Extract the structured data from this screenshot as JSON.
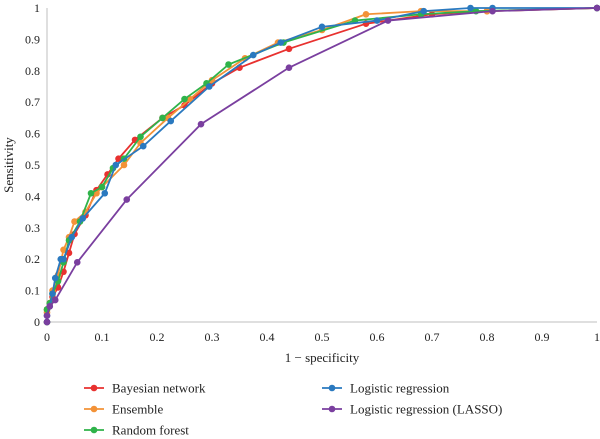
{
  "chart_data": {
    "type": "line",
    "xlabel": "1 − specificity",
    "ylabel": "Sensitivity",
    "xlim": [
      0,
      1
    ],
    "ylim": [
      0,
      1
    ],
    "x_ticks": [
      "0",
      "0.1",
      "0.2",
      "0.3",
      "0.4",
      "0.5",
      "0.6",
      "0.7",
      "0.8",
      "0.9",
      "1"
    ],
    "y_ticks": [
      "0",
      "0.1",
      "0.2",
      "0.3",
      "0.4",
      "0.5",
      "0.6",
      "0.7",
      "0.8",
      "0.9",
      "1"
    ],
    "grid": false,
    "legend_position": "bottom",
    "series": [
      {
        "name": "Bayesian network",
        "color": "#e8312f",
        "points": [
          [
            0,
            0
          ],
          [
            0,
            0.04
          ],
          [
            0.005,
            0.06
          ],
          [
            0.01,
            0.08
          ],
          [
            0.02,
            0.11
          ],
          [
            0.03,
            0.16
          ],
          [
            0.04,
            0.22
          ],
          [
            0.05,
            0.28
          ],
          [
            0.07,
            0.34
          ],
          [
            0.09,
            0.42
          ],
          [
            0.11,
            0.47
          ],
          [
            0.13,
            0.52
          ],
          [
            0.16,
            0.58
          ],
          [
            0.21,
            0.65
          ],
          [
            0.25,
            0.69
          ],
          [
            0.3,
            0.76
          ],
          [
            0.35,
            0.81
          ],
          [
            0.44,
            0.87
          ],
          [
            0.58,
            0.95
          ],
          [
            0.7,
            0.98
          ],
          [
            0.8,
            0.99
          ],
          [
            1,
            1
          ]
        ]
      },
      {
        "name": "Ensemble",
        "color": "#f39237",
        "points": [
          [
            0,
            0
          ],
          [
            0,
            0.03
          ],
          [
            0.005,
            0.06
          ],
          [
            0.01,
            0.1
          ],
          [
            0.02,
            0.15
          ],
          [
            0.03,
            0.23
          ],
          [
            0.04,
            0.27
          ],
          [
            0.05,
            0.32
          ],
          [
            0.07,
            0.35
          ],
          [
            0.09,
            0.41
          ],
          [
            0.1,
            0.43
          ],
          [
            0.14,
            0.5
          ],
          [
            0.17,
            0.57
          ],
          [
            0.22,
            0.65
          ],
          [
            0.26,
            0.71
          ],
          [
            0.3,
            0.77
          ],
          [
            0.36,
            0.84
          ],
          [
            0.42,
            0.89
          ],
          [
            0.5,
            0.93
          ],
          [
            0.58,
            0.98
          ],
          [
            0.68,
            0.99
          ],
          [
            0.8,
            0.99
          ],
          [
            1,
            1
          ]
        ]
      },
      {
        "name": "Random forest",
        "color": "#2fb34a",
        "points": [
          [
            0,
            0
          ],
          [
            0,
            0.04
          ],
          [
            0.005,
            0.06
          ],
          [
            0.01,
            0.09
          ],
          [
            0.02,
            0.13
          ],
          [
            0.03,
            0.19
          ],
          [
            0.04,
            0.26
          ],
          [
            0.06,
            0.32
          ],
          [
            0.08,
            0.41
          ],
          [
            0.1,
            0.43
          ],
          [
            0.12,
            0.49
          ],
          [
            0.14,
            0.52
          ],
          [
            0.17,
            0.59
          ],
          [
            0.21,
            0.65
          ],
          [
            0.25,
            0.71
          ],
          [
            0.29,
            0.76
          ],
          [
            0.33,
            0.82
          ],
          [
            0.43,
            0.89
          ],
          [
            0.56,
            0.96
          ],
          [
            0.68,
            0.98
          ],
          [
            0.78,
            0.99
          ],
          [
            1,
            1
          ]
        ]
      },
      {
        "name": "Logistic regression",
        "color": "#2a79bf",
        "points": [
          [
            0,
            0
          ],
          [
            0,
            0.02
          ],
          [
            0.005,
            0.05
          ],
          [
            0.01,
            0.09
          ],
          [
            0.015,
            0.14
          ],
          [
            0.025,
            0.2
          ],
          [
            0.03,
            0.2
          ],
          [
            0.045,
            0.27
          ],
          [
            0.065,
            0.33
          ],
          [
            0.105,
            0.41
          ],
          [
            0.125,
            0.5
          ],
          [
            0.175,
            0.56
          ],
          [
            0.225,
            0.64
          ],
          [
            0.295,
            0.75
          ],
          [
            0.375,
            0.85
          ],
          [
            0.425,
            0.89
          ],
          [
            0.5,
            0.94
          ],
          [
            0.6,
            0.96
          ],
          [
            0.685,
            0.99
          ],
          [
            0.77,
            1
          ],
          [
            0.81,
            1
          ],
          [
            1,
            1
          ]
        ]
      },
      {
        "name": "Logistic regression (LASSO)",
        "color": "#7a3f9f",
        "points": [
          [
            0,
            0
          ],
          [
            0,
            0.02
          ],
          [
            0.005,
            0.05
          ],
          [
            0.015,
            0.07
          ],
          [
            0.055,
            0.19
          ],
          [
            0.145,
            0.39
          ],
          [
            0.28,
            0.63
          ],
          [
            0.44,
            0.81
          ],
          [
            0.62,
            0.96
          ],
          [
            0.81,
            0.99
          ],
          [
            1,
            1
          ]
        ]
      }
    ]
  }
}
